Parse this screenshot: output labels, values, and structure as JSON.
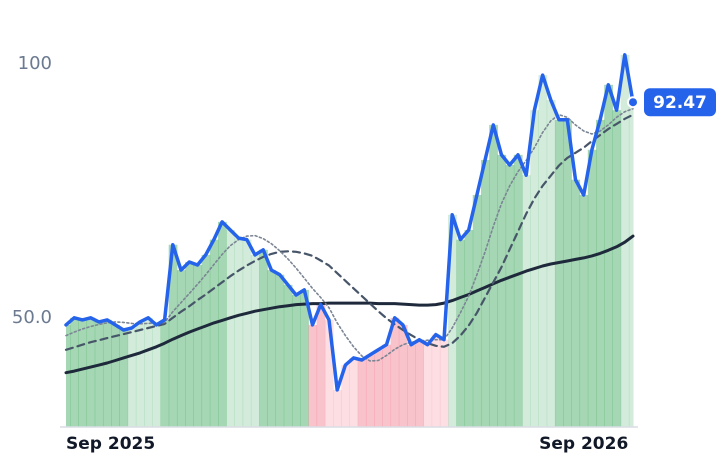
{
  "chart_data": {
    "type": "line",
    "categories": [
      "Sep 2025",
      null,
      null,
      null,
      null,
      null,
      null,
      null,
      null,
      null,
      null,
      null,
      null,
      null,
      null,
      null,
      null,
      null,
      null,
      null,
      null,
      null,
      null,
      null,
      null,
      null,
      null,
      null,
      null,
      null,
      null,
      null,
      null,
      null,
      null,
      null,
      null,
      null,
      null,
      null,
      null,
      null,
      null,
      null,
      null,
      null,
      null,
      null,
      null,
      null,
      null,
      null,
      null,
      null,
      null,
      null,
      null,
      null,
      null,
      null,
      null,
      null,
      null,
      "Sep 2026",
      null,
      null,
      null,
      null,
      null,
      null
    ],
    "series": [
      {
        "color": "#2563eb",
        "line_style": "solid",
        "values": [
          48.6,
          50,
          49.6,
          50,
          49.2,
          49.6,
          48.6,
          47.6,
          48,
          49.2,
          50,
          48.6,
          49.6,
          64.4,
          59.4,
          61,
          60.4,
          62.4,
          65.4,
          68.9,
          67.3,
          65.7,
          65.4,
          62.4,
          63.4,
          59.4,
          58.5,
          56.5,
          54.5,
          55.5,
          48.6,
          52.6,
          49.6,
          35.8,
          40.7,
          42.1,
          41.7,
          42.7,
          43.7,
          44.7,
          50,
          48.6,
          44.7,
          45.7,
          44.7,
          46.7,
          45.7,
          70.3,
          65.4,
          67.3,
          74.2,
          81.1,
          88,
          82.1,
          80.1,
          82.1,
          78.1,
          90.9,
          97.8,
          92.9,
          89,
          89,
          77.2,
          74.2,
          83.1,
          89,
          95.9,
          90.9,
          101.8,
          92.47
        ]
      },
      {
        "color": "#7b8594",
        "line_style": "dotted",
        "values": [
          46.5,
          47.2,
          47.8,
          48.3,
          48.7,
          49,
          49.2,
          49.1,
          48.9,
          48.8,
          48.9,
          49,
          49.1,
          51.2,
          53,
          54.8,
          56.6,
          58.5,
          60.5,
          62.5,
          64.2,
          65.4,
          66.1,
          66.2,
          65.6,
          64.6,
          63.2,
          61.6,
          59.8,
          57.8,
          55.8,
          54,
          52,
          49,
          46.5,
          44.3,
          42.5,
          41.5,
          41.6,
          42.6,
          43.8,
          44.7,
          45.2,
          45.4,
          45.6,
          45.7,
          45.7,
          48,
          51,
          54.3,
          58.5,
          63,
          68,
          72.5,
          76,
          78.8,
          81,
          83.5,
          86.5,
          88.8,
          90,
          89.5,
          88,
          86.8,
          86.2,
          86.8,
          88,
          89.5,
          90.6,
          91.2
        ]
      },
      {
        "color": "#475569",
        "line_style": "dashed",
        "values": [
          43.7,
          44.2,
          44.7,
          45.2,
          45.6,
          46,
          46.4,
          46.8,
          47.2,
          47.6,
          48,
          48.4,
          48.8,
          50,
          51.2,
          52.3,
          53.5,
          54.6,
          55.8,
          57,
          58.2,
          59.3,
          60.3,
          61.2,
          62,
          62.6,
          63,
          63.1,
          63,
          62.7,
          62.2,
          61.3,
          60.3,
          58.8,
          57.3,
          55.8,
          54.3,
          52.8,
          51.3,
          49.9,
          48.7,
          47.6,
          46.6,
          45.7,
          45,
          44.5,
          44.3,
          45,
          46.5,
          48.5,
          51,
          54,
          57,
          60,
          63.5,
          67,
          70.5,
          73.5,
          76,
          78,
          80,
          81.5,
          82.5,
          83.5,
          84.8,
          86,
          87.2,
          88.2,
          89.2,
          90
        ]
      },
      {
        "color": "#1e293b",
        "line_style": "solid",
        "values": [
          39.2,
          39.5,
          39.9,
          40.3,
          40.7,
          41.1,
          41.6,
          42.1,
          42.6,
          43.1,
          43.7,
          44.3,
          45,
          45.8,
          46.5,
          47.2,
          47.8,
          48.4,
          49,
          49.5,
          50,
          50.5,
          50.9,
          51.3,
          51.6,
          51.9,
          52.2,
          52.4,
          52.6,
          52.7,
          52.8,
          52.8,
          52.9,
          52.9,
          52.9,
          52.9,
          52.9,
          52.9,
          52.8,
          52.8,
          52.8,
          52.7,
          52.6,
          52.5,
          52.5,
          52.6,
          52.9,
          53.4,
          54,
          54.6,
          55.3,
          56,
          56.7,
          57.4,
          58,
          58.6,
          59.2,
          59.7,
          60.2,
          60.6,
          60.9,
          61.2,
          61.5,
          61.8,
          62.2,
          62.7,
          63.3,
          64,
          64.9,
          66.1
        ]
      }
    ],
    "up_color": "#4caf6a",
    "down_color": "#f27a8f",
    "ylim": [
      28.5,
      112.6
    ],
    "yticks": [
      {
        "value": 50,
        "label": "50.0"
      },
      100
    ]
  }
}
